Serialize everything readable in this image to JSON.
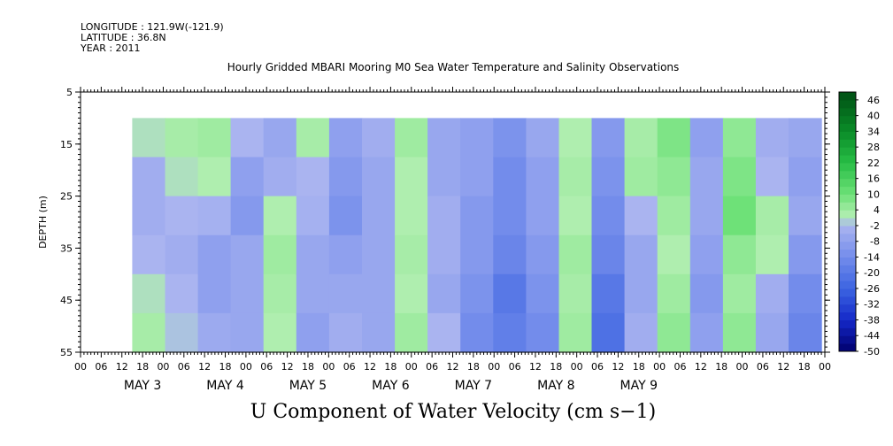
{
  "header": {
    "longitude": "LONGITUDE : 121.9W(-121.9)",
    "latitude": "LATITUDE : 36.8N",
    "year": "YEAR : 2011"
  },
  "chart_data": {
    "type": "heatmap",
    "title": "Hourly Gridded MBARI Mooring M0 Sea Water Temperature and Salinity Observations",
    "xlabel": "U Component of Water Velocity (cm s−1)",
    "ylabel": "DEPTH (m)",
    "ylim": [
      55,
      5
    ],
    "y_ticks": [
      5,
      15,
      25,
      35,
      45,
      55
    ],
    "data_depth_range": [
      10,
      55
    ],
    "x_tick_hours": [
      "00",
      "06",
      "12",
      "18",
      "00",
      "06",
      "12",
      "18",
      "00",
      "06",
      "12",
      "18",
      "00",
      "06",
      "12",
      "18",
      "00",
      "06",
      "12",
      "18",
      "00",
      "06",
      "12",
      "18",
      "00",
      "06",
      "12",
      "18",
      "00",
      "06",
      "12",
      "18",
      "00",
      "06",
      "12",
      "18",
      "00"
    ],
    "x_days": [
      "MAY  3",
      "MAY  4",
      "MAY  5",
      "MAY  6",
      "MAY  7",
      "MAY  8",
      "MAY  9"
    ],
    "colorbar": {
      "labels": [
        46,
        40,
        34,
        28,
        22,
        16,
        10,
        4,
        -2,
        -8,
        -14,
        -20,
        -26,
        -32,
        -38,
        -44,
        -50
      ],
      "range": [
        -50,
        49
      ]
    },
    "column_values_description_free": [],
    "columns": [
      {
        "time": "May 2 09",
        "values": [
          1,
          -4,
          -4,
          -2,
          1,
          3
        ]
      },
      {
        "time": "May 2 18",
        "values": [
          3,
          1,
          -2,
          -4,
          -2,
          -1
        ]
      },
      {
        "time": "May 3 03",
        "values": [
          4,
          2,
          -3,
          -8,
          -8,
          -5
        ]
      },
      {
        "time": "May 3 12",
        "values": [
          -2,
          -8,
          -10,
          -6,
          -6,
          -6
        ]
      },
      {
        "time": "May 3 21",
        "values": [
          -6,
          -4,
          2,
          4,
          3,
          2
        ]
      },
      {
        "time": "May 4 06",
        "values": [
          3,
          -2,
          -3,
          -6,
          -6,
          -8
        ]
      },
      {
        "time": "May 4 15",
        "values": [
          -8,
          -10,
          -12,
          -8,
          -6,
          -4
        ]
      },
      {
        "time": "May 5 00",
        "values": [
          -4,
          -6,
          -6,
          -6,
          -6,
          -6
        ]
      },
      {
        "time": "May 5 09",
        "values": [
          4,
          2,
          2,
          3,
          2,
          4
        ]
      },
      {
        "time": "May 5 18",
        "values": [
          -6,
          -6,
          -4,
          -4,
          -6,
          -2
        ]
      },
      {
        "time": "May 6 03",
        "values": [
          -8,
          -8,
          -10,
          -10,
          -12,
          -14
        ]
      },
      {
        "time": "May 6 12",
        "values": [
          -12,
          -14,
          -14,
          -16,
          -20,
          -18
        ]
      },
      {
        "time": "May 6 21",
        "values": [
          -6,
          -8,
          -8,
          -10,
          -12,
          -14
        ]
      },
      {
        "time": "May 7 06",
        "values": [
          2,
          3,
          2,
          4,
          3,
          4
        ]
      },
      {
        "time": "May 7 15",
        "values": [
          -10,
          -12,
          -14,
          -16,
          -20,
          -22
        ]
      },
      {
        "time": "May 8 00",
        "values": [
          3,
          4,
          -2,
          -6,
          -6,
          -4
        ]
      },
      {
        "time": "May 8 09",
        "values": [
          8,
          6,
          4,
          2,
          4,
          6
        ]
      },
      {
        "time": "May 8 18",
        "values": [
          -8,
          -6,
          -6,
          -8,
          -10,
          -8
        ]
      },
      {
        "time": "May 9 03",
        "values": [
          6,
          8,
          10,
          6,
          4,
          6
        ]
      },
      {
        "time": "May 9 12",
        "values": [
          -4,
          -2,
          3,
          2,
          -4,
          -6
        ]
      },
      {
        "time": "May 9 21",
        "values": [
          -6,
          -8,
          -6,
          -10,
          -14,
          -16
        ]
      }
    ]
  }
}
